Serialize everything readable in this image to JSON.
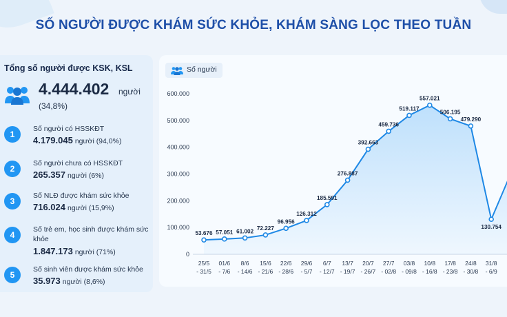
{
  "title": "SỐ NGƯỜI ĐƯỢC KHÁM SỨC KHỎE, KHÁM SÀNG LỌC THEO TUẦN",
  "colors": {
    "accent": "#2196f3",
    "title": "#1e4fa8",
    "line": "#1e88e5",
    "area": "#90caf9"
  },
  "summary": {
    "label": "Tổng số người được KSK, KSL",
    "icon": "people-icon",
    "value": "4.444.402",
    "unit": "người",
    "percent": "(34,8%)"
  },
  "stats": [
    {
      "num": "1",
      "label": "Số người có HSSKĐT",
      "value": "4.179.045",
      "suffix": "người (94,0%)"
    },
    {
      "num": "2",
      "label": "Số người chưa có HSSKĐT",
      "value": "265.357",
      "suffix": "người (6%)"
    },
    {
      "num": "3",
      "label": "Số NLĐ được khám sức khỏe",
      "value": "716.024",
      "suffix": "người (15,9%)"
    },
    {
      "num": "4",
      "label": "Số trẻ em, học sinh được khám sức khỏe",
      "value": "1.847.173",
      "suffix": "người (71%)"
    },
    {
      "num": "5",
      "label": "Số sinh viên được khám sức khỏe",
      "value": "35.973",
      "suffix": "người (8,6%)"
    }
  ],
  "chart_data": {
    "type": "area",
    "title": "",
    "xlabel": "",
    "ylabel": "",
    "legend": {
      "label": "Số người",
      "icon": "people-icon",
      "placement": "top-left"
    },
    "ylim": [
      0,
      600000
    ],
    "yticks": [
      "0",
      "100.000",
      "200.000",
      "300.000",
      "400.000",
      "500.000",
      "600.000"
    ],
    "grid": false,
    "categories": [
      [
        "25/5",
        "- 31/5"
      ],
      [
        "01/6",
        "- 7/6"
      ],
      [
        "8/6",
        "- 14/6"
      ],
      [
        "15/6",
        "- 21/6"
      ],
      [
        "22/6",
        "- 28/6"
      ],
      [
        "29/6",
        "- 5/7"
      ],
      [
        "6/7",
        "- 12/7"
      ],
      [
        "13/7",
        "- 19/7"
      ],
      [
        "20/7",
        "- 26/7"
      ],
      [
        "27/7",
        "- 02/8"
      ],
      [
        "03/8",
        "- 09/8"
      ],
      [
        "10/8",
        "- 16/8"
      ],
      [
        "17/8",
        "- 23/8"
      ],
      [
        "24/8",
        "- 30/8"
      ],
      [
        "31/8",
        "- 6/9"
      ]
    ],
    "series": [
      {
        "values": [
          53676,
          57051,
          61002,
          72227,
          96956,
          126312,
          185591,
          276887,
          392663,
          459736,
          519117,
          557021,
          506195,
          479290,
          130754
        ],
        "labels": [
          "53.676",
          "57.051",
          "61.002",
          "72.227",
          "96.956",
          "126.312",
          "185.591",
          "276.887",
          "392.663",
          "459.736",
          "519.117",
          "557.021",
          "506.195",
          "479.290",
          "130.754"
        ]
      }
    ]
  }
}
